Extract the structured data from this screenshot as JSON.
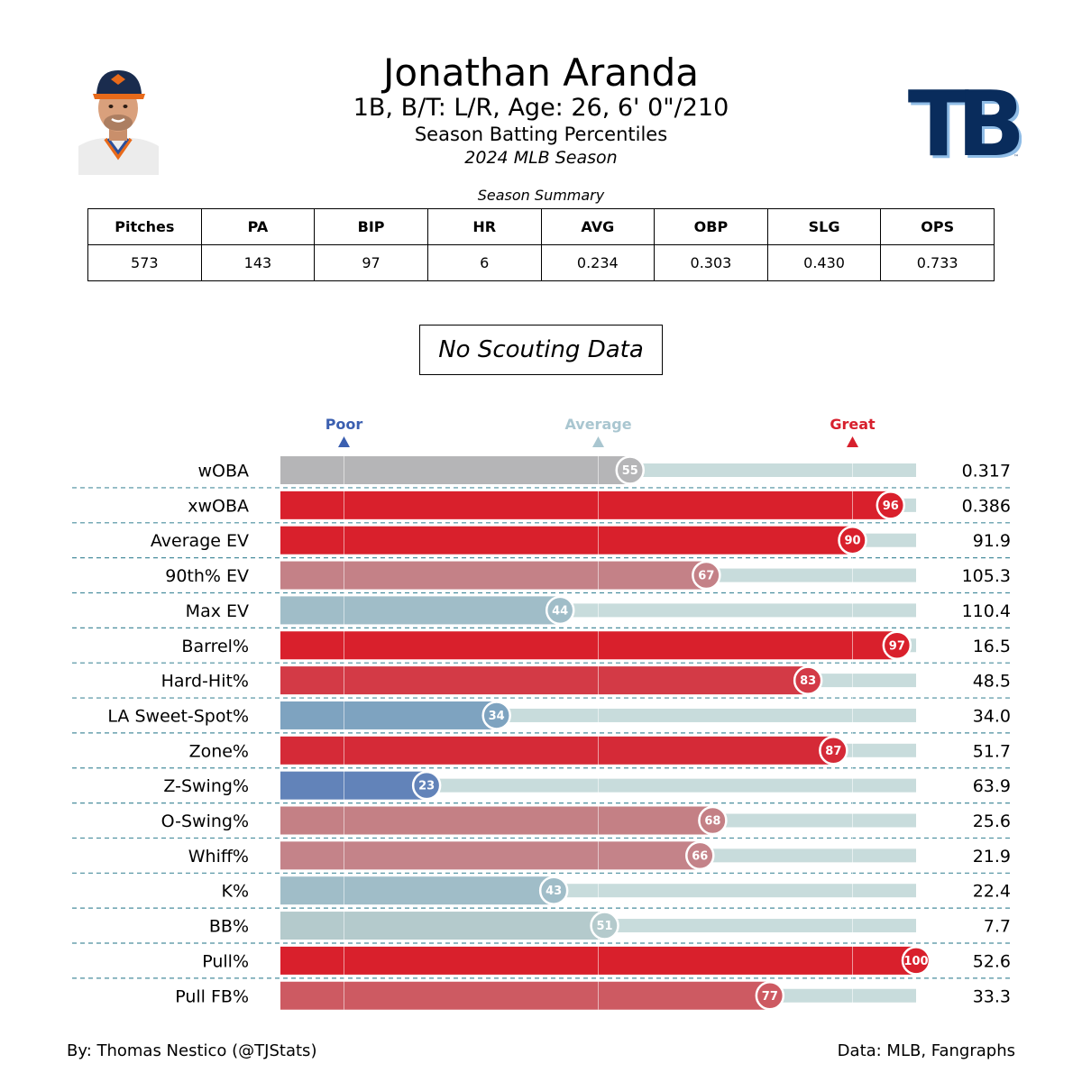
{
  "header": {
    "name": "Jonathan Aranda",
    "bio": "1B, B/T: L/R, Age: 26, 6' 0\"/210",
    "subtitle": "Season Batting Percentiles",
    "season": "2024 MLB Season",
    "team_logo_text": "TB",
    "team_logo_colors": {
      "primary": "#092c5c",
      "outline": "#8fbce6"
    }
  },
  "summary": {
    "caption": "Season Summary",
    "headers": [
      "Pitches",
      "PA",
      "BIP",
      "HR",
      "AVG",
      "OBP",
      "SLG",
      "OPS"
    ],
    "values": [
      "573",
      "143",
      "97",
      "6",
      "0.234",
      "0.303",
      "0.430",
      "0.733"
    ]
  },
  "scouting": {
    "text": "No Scouting Data"
  },
  "chart_data": {
    "type": "bar",
    "orientation": "horizontal",
    "title": "Season Batting Percentiles",
    "xlim": [
      0,
      100
    ],
    "reference_markers": [
      {
        "label": "Poor",
        "value": 10,
        "color": "#3b5fb0"
      },
      {
        "label": "Average",
        "value": 50,
        "color": "#a9c6d0"
      },
      {
        "label": "Great",
        "value": 90,
        "color": "#d7202d"
      }
    ],
    "categories": [
      "wOBA",
      "xwOBA",
      "Average EV",
      "90th% EV",
      "Max EV",
      "Barrel%",
      "Hard-Hit%",
      "LA Sweet-Spot%",
      "Zone%",
      "Z-Swing%",
      "O-Swing%",
      "Whiff%",
      "K%",
      "BB%",
      "Pull%",
      "Pull FB%"
    ],
    "percentiles": [
      55,
      96,
      90,
      67,
      44,
      97,
      83,
      34,
      87,
      23,
      68,
      66,
      43,
      51,
      100,
      77
    ],
    "percentile_labels": [
      "55",
      "96",
      "90",
      "67",
      "44",
      "97",
      "83",
      "34",
      "87",
      "23",
      "68",
      "66",
      "43",
      "51",
      "100",
      "77"
    ],
    "stat_values": [
      "0.317",
      "0.386",
      "91.9",
      "105.3",
      "110.4",
      "16.5",
      "48.5",
      "34.0",
      "51.7",
      "63.9",
      "25.6",
      "21.9",
      "22.4",
      "7.7",
      "52.6",
      "33.3"
    ],
    "bar_colors": [
      "#b5b5b7",
      "#d9202c",
      "#d9202c",
      "#c48187",
      "#a0bdc8",
      "#d9202c",
      "#d33a46",
      "#7ea3c0",
      "#d52a37",
      "#6283b9",
      "#c48085",
      "#c48389",
      "#a0bdc8",
      "#b4cacc",
      "#d9202c",
      "#cd5a62"
    ],
    "track_color": "#c8dcdc"
  },
  "footer": {
    "credit": "By: Thomas Nestico (@TJStats)",
    "source": "Data: MLB, Fangraphs"
  }
}
